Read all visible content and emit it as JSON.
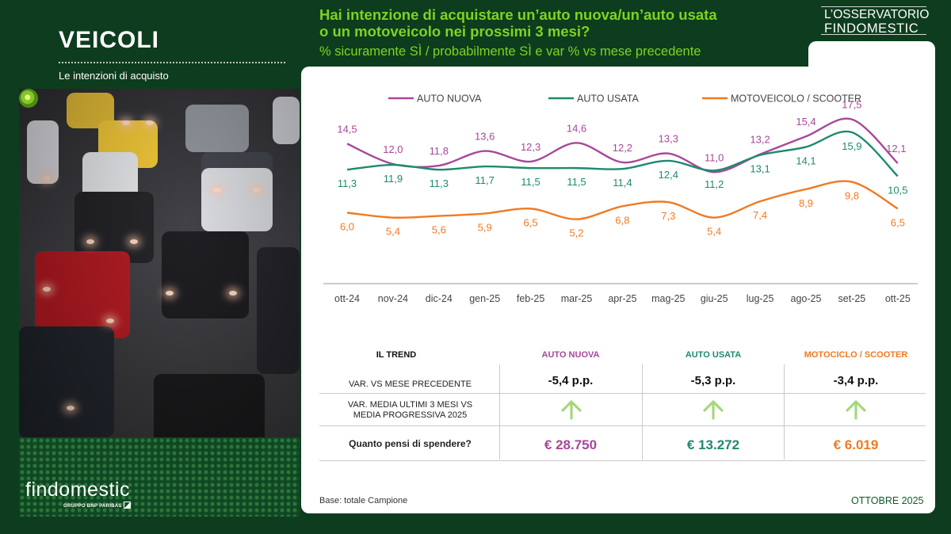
{
  "left": {
    "title": "VEICOLI",
    "subtitle": "Le intenzioni di acquisto",
    "logo": "findomestic",
    "logo_sub": "GRUPPO BNP PARIBAS"
  },
  "header": {
    "question_line1": "Hai intenzione di acquistare un’auto nuova/un’auto usata",
    "question_line2": "o un motoveicolo nei prossimi 3 mesi?",
    "question_sub": "% sicuramente SÌ / probabilmente SÌ e var % vs mese precedente",
    "brand_line1": "L’OSSERVATORIO",
    "brand_line2": "FINDOMESTIC"
  },
  "chart_data": {
    "type": "line",
    "title": "",
    "xlabel": "",
    "ylabel": "",
    "categories": [
      "ott-24",
      "nov-24",
      "dic-24",
      "gen-25",
      "feb-25",
      "mar-25",
      "apr-25",
      "mag-25",
      "giu-25",
      "lug-25",
      "ago-25",
      "set-25",
      "ott-25"
    ],
    "series": [
      {
        "name": "AUTO NUOVA",
        "color": "#a8479a",
        "values": [
          14.5,
          12.0,
          11.8,
          13.6,
          12.3,
          14.6,
          12.2,
          13.3,
          11.0,
          13.2,
          15.4,
          17.5,
          12.1
        ],
        "labels": [
          "14,5",
          "12,0",
          "11,8",
          "13,6",
          "12,3",
          "14,6",
          "12,2",
          "13,3",
          "11,0",
          "13,2",
          "15,4",
          "17,5",
          "12,1"
        ]
      },
      {
        "name": "AUTO USATA",
        "color": "#1e8a6e",
        "values": [
          11.3,
          11.9,
          11.3,
          11.7,
          11.5,
          11.5,
          11.4,
          12.4,
          11.2,
          13.1,
          14.1,
          15.9,
          10.5
        ],
        "labels": [
          "11,3",
          "11,9",
          "11,3",
          "11,7",
          "11,5",
          "11,5",
          "11,4",
          "12,4",
          "11,2",
          "13,1",
          "14,1",
          "15,9",
          "10,5"
        ]
      },
      {
        "name": "MOTOVEICOLO / SCOOTER",
        "color": "#f07a22",
        "values": [
          6.0,
          5.4,
          5.6,
          5.9,
          6.5,
          5.2,
          6.8,
          7.3,
          5.4,
          7.4,
          8.9,
          9.8,
          6.5
        ],
        "labels": [
          "6,0",
          "5,4",
          "5,6",
          "5,9",
          "6,5",
          "5,2",
          "6,8",
          "7,3",
          "5,4",
          "7,4",
          "8,9",
          "9,8",
          "6,5"
        ]
      }
    ],
    "legend": "top",
    "grid": false
  },
  "trend": {
    "title": "IL TREND",
    "columns": [
      {
        "label": "AUTO NUOVA",
        "color": "#a8479a"
      },
      {
        "label": "AUTO USATA",
        "color": "#1e8a6e"
      },
      {
        "label": "MOTOCICLO / SCOOTER",
        "color": "#f07a22"
      }
    ],
    "rows": [
      {
        "label_line1": "VAR. VS MESE PRECEDENTE",
        "label_line2": "",
        "values": [
          "-5,4 p.p.",
          "-5,3 p.p.",
          "-3,4 p.p."
        ]
      },
      {
        "label_line1": "VAR.  MEDIA ULTIMI 3 MESI VS",
        "label_line2": "MEDIA PROGRESSIVA  2025",
        "arrows": [
          "up-arrow-icon",
          "up-arrow-icon",
          "up-arrow-icon"
        ]
      },
      {
        "label_line1": "Quanto pensi di spendere?",
        "label_line2": "",
        "values": [
          "€ 28.750",
          "€ 13.272",
          "€ 6.019"
        ]
      }
    ],
    "arrow_color": "#a6d87a"
  },
  "footer": {
    "base": "Base: totale Campione",
    "date": "OTTOBRE 2025"
  }
}
